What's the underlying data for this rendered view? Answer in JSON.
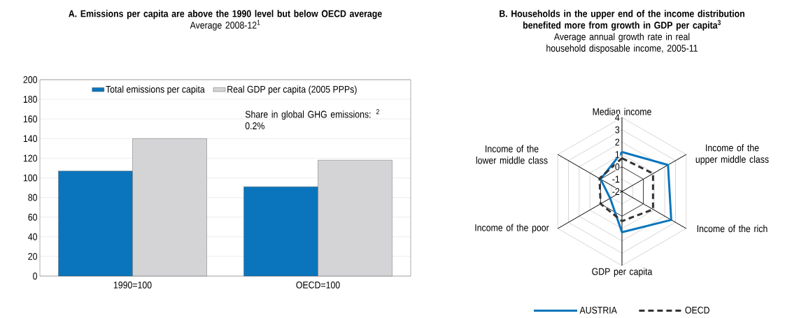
{
  "chart_data": [
    {
      "type": "bar",
      "title": "A. Emissions per capita are above the 1990 level but below OECD average",
      "subtitle": "Average 2008-12$^{1}$",
      "categories": [
        "1990=100",
        "OECD=100"
      ],
      "series": [
        {
          "name": "Total emissions per capita",
          "color": "#0a75bc",
          "values": [
            107,
            91
          ]
        },
        {
          "name": "Real GDP per capita (2005 PPPs)",
          "color": "#d4d4d6",
          "values": [
            140,
            118
          ]
        }
      ],
      "ylim": [
        0,
        200
      ],
      "yticks": [
        0,
        20,
        40,
        60,
        80,
        100,
        120,
        140,
        160,
        180,
        200
      ],
      "grid": "y",
      "legend": "top",
      "annotations": [
        "Share in global GHG emissions: $^{2}$ 0.2%"
      ]
    },
    {
      "type": "radar",
      "title": "B. Households in the upper end of the income distribution benefited more from growth in GDP per capita$^{3}$",
      "subtitle": "Average annual growth rate in real household disposable income, 2005-11",
      "categories": [
        "Median income",
        "Income of the upper middle class",
        "Income of the rich",
        "GDP per capita",
        "Income of the poor",
        "Income of the lower middle class"
      ],
      "series": [
        {
          "name": "AUSTRIA",
          "color": "#0a75bc",
          "line_style": "solid",
          "values": [
            1.2,
            2.3,
            2.6,
            1.3,
            -0.9,
            0.0
          ]
        },
        {
          "name": "OECD",
          "color": "#333333",
          "line_style": "dashed",
          "values": [
            0.7,
            0.9,
            0.9,
            0.4,
            0.0,
            0.1
          ]
        }
      ],
      "ylim": [
        -2,
        4
      ],
      "yticks": [
        -2,
        -1,
        0,
        1,
        2,
        3,
        4
      ],
      "grid": true,
      "legend": "bottom"
    }
  ]
}
